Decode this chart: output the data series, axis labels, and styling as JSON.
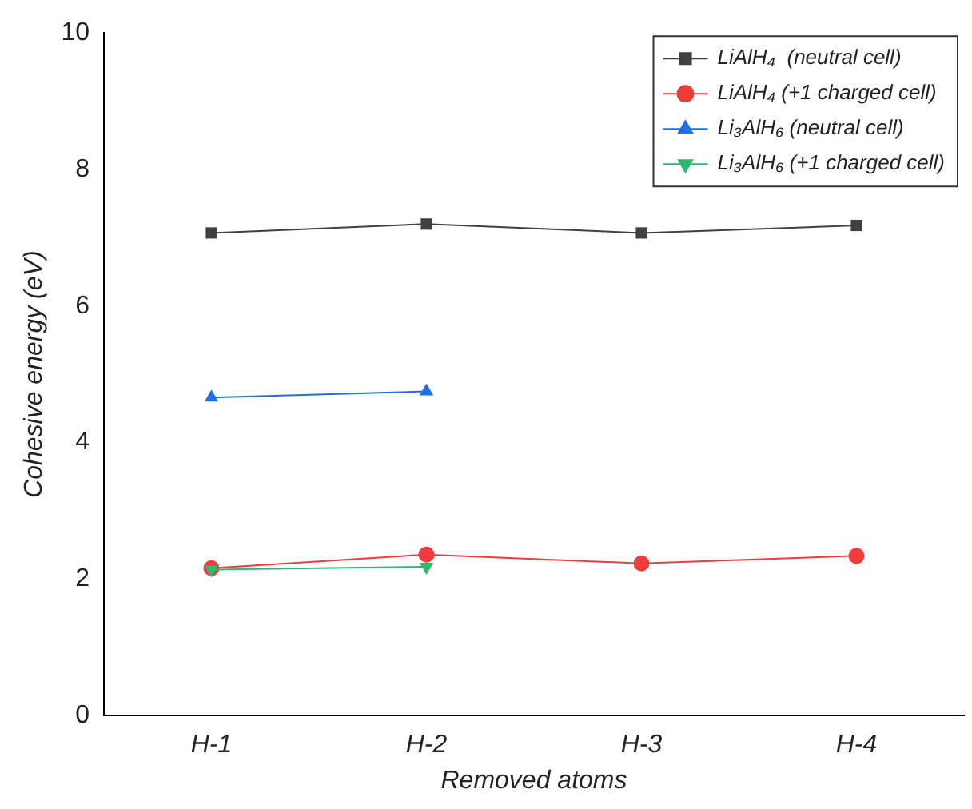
{
  "chart_data": {
    "type": "line",
    "xlabel": "Removed atoms",
    "ylabel": "Cohesive energy (eV)",
    "categories": [
      "H-1",
      "H-2",
      "H-3",
      "H-4"
    ],
    "series": [
      {
        "name": "LiAlH₄  (neutral cell)",
        "color": "#404040",
        "marker": "square",
        "values": [
          7.07,
          7.2,
          7.07,
          7.18
        ]
      },
      {
        "name": "LiAlH₄ (+1 charged cell)",
        "color": "#f03c3c",
        "marker": "circle",
        "values": [
          2.16,
          2.36,
          2.23,
          2.34
        ]
      },
      {
        "name": "Li₃AlH₆ (neutral cell)",
        "color": "#1e6fe6",
        "marker": "triangle",
        "values": [
          4.66,
          4.75,
          null,
          null
        ]
      },
      {
        "name": "Li₃AlH₆ (+1 charged cell)",
        "color": "#2eb872",
        "marker": "triangle-down",
        "values": [
          2.14,
          2.18,
          null,
          null
        ]
      }
    ],
    "ylim": [
      0,
      10
    ],
    "yticks": [
      0,
      2,
      4,
      6,
      8,
      10
    ],
    "grid": false,
    "legend": "top right"
  }
}
